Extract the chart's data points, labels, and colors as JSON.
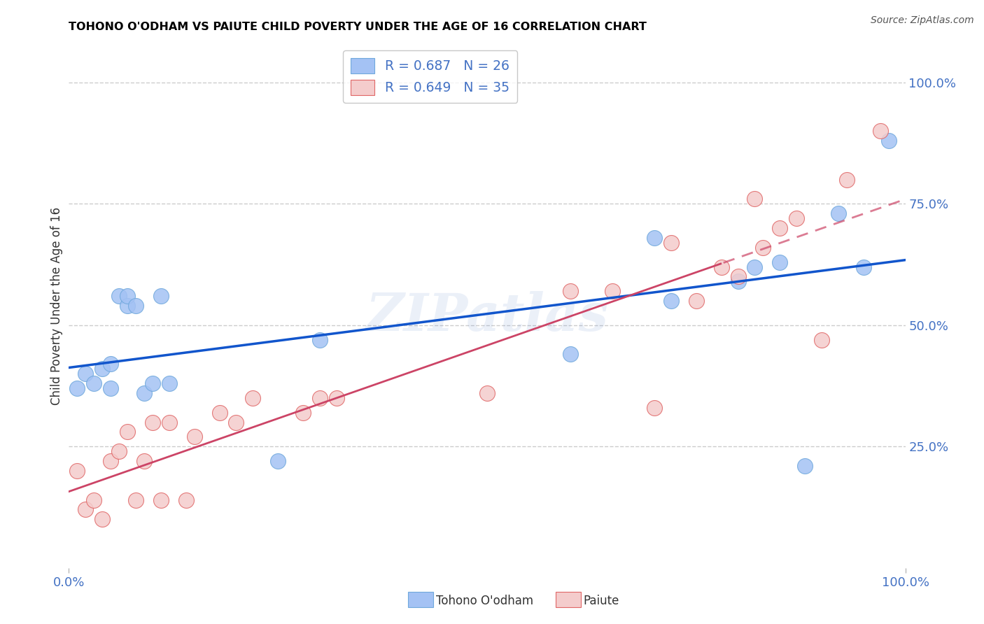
{
  "title": "TOHONO O'ODHAM VS PAIUTE CHILD POVERTY UNDER THE AGE OF 16 CORRELATION CHART",
  "source": "Source: ZipAtlas.com",
  "ylabel": "Child Poverty Under the Age of 16",
  "watermark": "ZIPatlas",
  "tohono_R": 0.687,
  "tohono_N": 26,
  "paiute_R": 0.649,
  "paiute_N": 35,
  "tohono_color": "#a4c2f4",
  "tohono_edge_color": "#6fa8dc",
  "paiute_color": "#f4cccc",
  "paiute_edge_color": "#e06666",
  "tohono_line_color": "#1155cc",
  "paiute_line_color": "#cc4466",
  "tohono_x": [
    0.01,
    0.02,
    0.03,
    0.04,
    0.05,
    0.05,
    0.06,
    0.07,
    0.07,
    0.08,
    0.09,
    0.1,
    0.11,
    0.12,
    0.25,
    0.3,
    0.6,
    0.7,
    0.72,
    0.8,
    0.82,
    0.85,
    0.88,
    0.92,
    0.95,
    0.98
  ],
  "tohono_y": [
    0.37,
    0.4,
    0.38,
    0.41,
    0.37,
    0.42,
    0.56,
    0.54,
    0.56,
    0.54,
    0.36,
    0.38,
    0.56,
    0.38,
    0.22,
    0.47,
    0.44,
    0.68,
    0.55,
    0.59,
    0.62,
    0.63,
    0.21,
    0.73,
    0.62,
    0.88
  ],
  "paiute_x": [
    0.01,
    0.02,
    0.03,
    0.04,
    0.05,
    0.06,
    0.07,
    0.08,
    0.09,
    0.1,
    0.11,
    0.12,
    0.14,
    0.15,
    0.18,
    0.2,
    0.22,
    0.28,
    0.3,
    0.32,
    0.5,
    0.6,
    0.65,
    0.7,
    0.72,
    0.75,
    0.78,
    0.8,
    0.82,
    0.83,
    0.85,
    0.87,
    0.9,
    0.93,
    0.97
  ],
  "paiute_y": [
    0.2,
    0.12,
    0.14,
    0.1,
    0.22,
    0.24,
    0.28,
    0.14,
    0.22,
    0.3,
    0.14,
    0.3,
    0.14,
    0.27,
    0.32,
    0.3,
    0.35,
    0.32,
    0.35,
    0.35,
    0.36,
    0.57,
    0.57,
    0.33,
    0.67,
    0.55,
    0.62,
    0.6,
    0.76,
    0.66,
    0.7,
    0.72,
    0.47,
    0.8,
    0.9
  ],
  "grid_color": "#cccccc",
  "bg_color": "#ffffff",
  "title_color": "#000000",
  "tick_color": "#4472c4",
  "ytick_values": [
    0.25,
    0.5,
    0.75,
    1.0
  ],
  "ytick_labels": [
    "25.0%",
    "50.0%",
    "75.0%",
    "100.0%"
  ]
}
